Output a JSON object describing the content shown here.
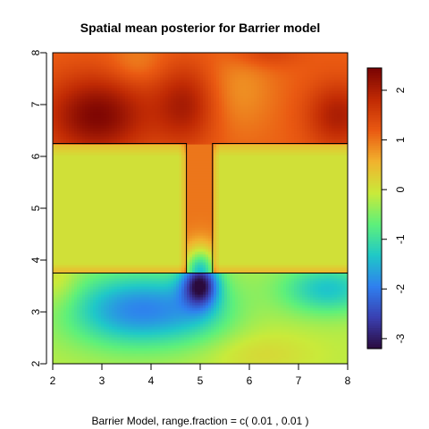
{
  "chart_data": {
    "type": "heatmap",
    "title": "Spatial mean posterior for Barrier model",
    "subtitle": "Barrier Model, range.fraction = c( 0.01 ,  0.01 )",
    "xlabel": "",
    "ylabel": "",
    "xlim": [
      2,
      8
    ],
    "ylim": [
      2,
      8
    ],
    "x_ticks": [
      "2",
      "3",
      "4",
      "5",
      "6",
      "7",
      "8"
    ],
    "y_ticks": [
      "2",
      "3",
      "4",
      "5",
      "6",
      "7",
      "8"
    ],
    "colorbar": {
      "range": [
        -3.2,
        2.45
      ],
      "ticks": [
        "-3",
        "-2",
        "-1",
        "0",
        "1",
        "2"
      ],
      "placement": "right",
      "colors": [
        "#2b0a3d",
        "#3a3fb0",
        "#2f7fef",
        "#1fc8c8",
        "#5ef07a",
        "#c9ea3a",
        "#f1b32e",
        "#ea5a12",
        "#c02a04",
        "#7a0403"
      ]
    },
    "barrier": {
      "left_block": {
        "x": [
          2.0,
          4.72
        ],
        "y": [
          3.75,
          6.25
        ]
      },
      "right_block": {
        "x": [
          5.25,
          8.0
        ],
        "y": [
          3.75,
          6.25
        ]
      },
      "gap_x": [
        4.72,
        5.25
      ]
    },
    "field_summary": [
      {
        "region": "top-left",
        "x": 2.9,
        "y": 6.8,
        "value": 2.3
      },
      {
        "region": "top-middle",
        "x": 4.7,
        "y": 7.0,
        "value": 1.9
      },
      {
        "region": "top-right",
        "x": 7.8,
        "y": 6.8,
        "value": 1.9
      },
      {
        "region": "gap-channel",
        "x": 5.0,
        "y": 5.0,
        "value": 1.0
      },
      {
        "region": "barrier-interior",
        "x": 3.3,
        "y": 5.0,
        "value": 0.0
      },
      {
        "region": "below-gap-minimum",
        "x": 5.0,
        "y": 3.6,
        "value": -3.0
      },
      {
        "region": "bottom-left",
        "x": 3.5,
        "y": 3.0,
        "value": -1.8
      },
      {
        "region": "bottom-right",
        "x": 7.5,
        "y": 3.5,
        "value": -1.4
      },
      {
        "region": "bottom-edge",
        "x": 6.0,
        "y": 2.2,
        "value": -0.4
      }
    ]
  }
}
